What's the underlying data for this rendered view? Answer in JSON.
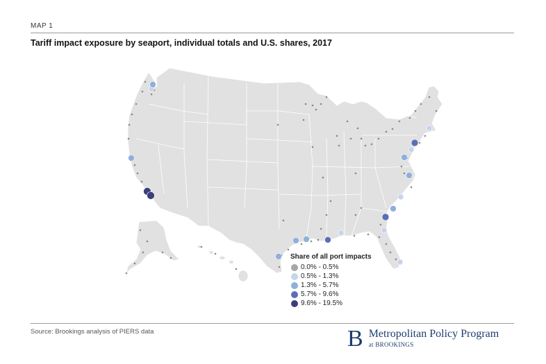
{
  "header": {
    "label": "MAP 1",
    "title": "Tariff impact exposure by seaport, individual totals and U.S. shares, 2017"
  },
  "legend": {
    "title": "Share of all port impacts",
    "items": [
      {
        "label": "0.0% - 0.5%",
        "color": "#a6a6a6"
      },
      {
        "label": "0.5% - 1.3%",
        "color": "#c6d4ec"
      },
      {
        "label": "1.3% - 5.7%",
        "color": "#8fb0dc"
      },
      {
        "label": "5.7% - 9.6%",
        "color": "#5a6fb5"
      },
      {
        "label": "9.6% - 19.5%",
        "color": "#3d3f7c"
      }
    ]
  },
  "footer": {
    "source": "Source: Brookings analysis of PIERS data",
    "logo_letter": "B",
    "logo_main": "Metropolitan Policy Program",
    "logo_sub": "at BROOKINGS"
  },
  "colors": {
    "land": "#e1e1e1",
    "border": "#ffffff",
    "brand": "#1c3d6e"
  }
}
